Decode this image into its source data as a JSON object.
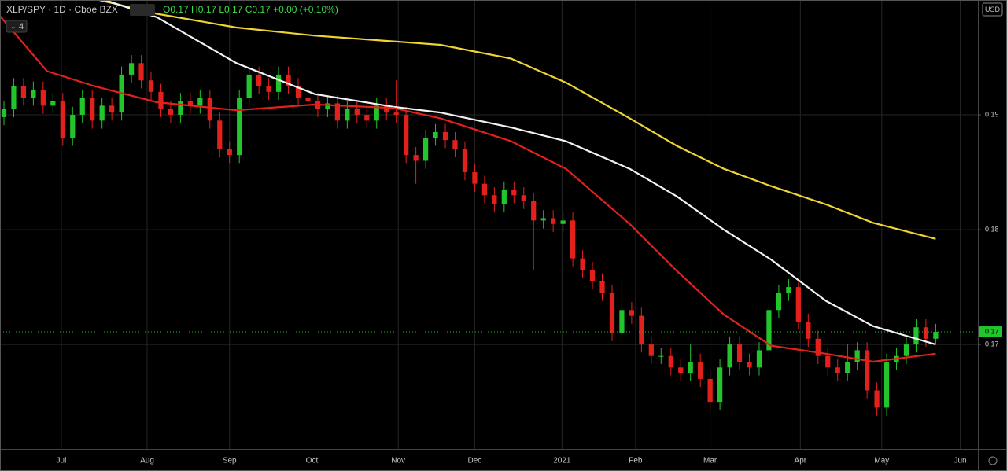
{
  "chart_data": {
    "type": "candlestick",
    "title": "XLP/SPY · 1D · Cboe BZX",
    "legend_text": "O0.17 H0.17 L0.17 C0.17 +0.00 (+0.10%)",
    "indicator_count": "4",
    "currency": "USD",
    "up_color": "#22c52b",
    "down_color": "#e3211c",
    "ohlc": [
      [
        0.1898,
        0.1912,
        0.1891,
        0.1905
      ],
      [
        0.1905,
        0.1932,
        0.1898,
        0.1925
      ],
      [
        0.1925,
        0.1932,
        0.1908,
        0.1915
      ],
      [
        0.1915,
        0.1929,
        0.1908,
        0.1922
      ],
      [
        0.1922,
        0.1929,
        0.1901,
        0.1908
      ],
      [
        0.1908,
        0.1919,
        0.1901,
        0.1912
      ],
      [
        0.1912,
        0.1919,
        0.1873,
        0.188
      ],
      [
        0.188,
        0.1907,
        0.1873,
        0.19
      ],
      [
        0.19,
        0.1922,
        0.1893,
        0.1915
      ],
      [
        0.1915,
        0.1922,
        0.1888,
        0.1895
      ],
      [
        0.1895,
        0.1915,
        0.1888,
        0.1908
      ],
      [
        0.1908,
        0.1915,
        0.1895,
        0.1902
      ],
      [
        0.1902,
        0.1942,
        0.1895,
        0.1935
      ],
      [
        0.1935,
        0.1952,
        0.1928,
        0.1945
      ],
      [
        0.1945,
        0.1952,
        0.1923,
        0.193
      ],
      [
        0.193,
        0.1937,
        0.1913,
        0.192
      ],
      [
        0.192,
        0.1927,
        0.1898,
        0.1905
      ],
      [
        0.1905,
        0.1912,
        0.1893,
        0.19
      ],
      [
        0.19,
        0.1919,
        0.1893,
        0.1912
      ],
      [
        0.1912,
        0.1919,
        0.1901,
        0.1908
      ],
      [
        0.1908,
        0.1922,
        0.1901,
        0.1915
      ],
      [
        0.1915,
        0.1922,
        0.1888,
        0.1895
      ],
      [
        0.1895,
        0.1902,
        0.1863,
        0.187
      ],
      [
        0.187,
        0.1877,
        0.1858,
        0.1865
      ],
      [
        0.1865,
        0.1922,
        0.1858,
        0.1915
      ],
      [
        0.1915,
        0.1942,
        0.1908,
        0.1935
      ],
      [
        0.1935,
        0.1942,
        0.1918,
        0.1925
      ],
      [
        0.1925,
        0.1932,
        0.1913,
        0.192
      ],
      [
        0.192,
        0.1942,
        0.1913,
        0.1935
      ],
      [
        0.1935,
        0.1942,
        0.1918,
        0.1925
      ],
      [
        0.1925,
        0.1932,
        0.1908,
        0.1915
      ],
      [
        0.1915,
        0.1922,
        0.1905,
        0.1912
      ],
      [
        0.1912,
        0.1919,
        0.1898,
        0.1905
      ],
      [
        0.1905,
        0.1917,
        0.1898,
        0.191
      ],
      [
        0.191,
        0.1917,
        0.1888,
        0.1895
      ],
      [
        0.1895,
        0.1912,
        0.1888,
        0.1905
      ],
      [
        0.1905,
        0.1912,
        0.1893,
        0.19
      ],
      [
        0.19,
        0.1907,
        0.1888,
        0.1895
      ],
      [
        0.1895,
        0.1915,
        0.1888,
        0.1908
      ],
      [
        0.1908,
        0.1915,
        0.1895,
        0.1902
      ],
      [
        0.1902,
        0.193,
        0.1893,
        0.19
      ],
      [
        0.19,
        0.1907,
        0.1858,
        0.1865
      ],
      [
        0.1865,
        0.1872,
        0.184,
        0.186
      ],
      [
        0.186,
        0.1887,
        0.1853,
        0.188
      ],
      [
        0.188,
        0.1892,
        0.1873,
        0.1885
      ],
      [
        0.1885,
        0.1892,
        0.1871,
        0.1878
      ],
      [
        0.1878,
        0.1885,
        0.1863,
        0.187
      ],
      [
        0.187,
        0.1877,
        0.1843,
        0.185
      ],
      [
        0.185,
        0.1857,
        0.1833,
        0.184
      ],
      [
        0.184,
        0.1847,
        0.1823,
        0.183
      ],
      [
        0.183,
        0.1837,
        0.1815,
        0.1822
      ],
      [
        0.1822,
        0.1842,
        0.1815,
        0.1835
      ],
      [
        0.1835,
        0.1842,
        0.1823,
        0.183
      ],
      [
        0.183,
        0.1837,
        0.1818,
        0.1825
      ],
      [
        0.1825,
        0.1832,
        0.1765,
        0.1808
      ],
      [
        0.1808,
        0.1817,
        0.1801,
        0.181
      ],
      [
        0.181,
        0.1817,
        0.1798,
        0.1805
      ],
      [
        0.1805,
        0.1815,
        0.1798,
        0.1808
      ],
      [
        0.1808,
        0.1815,
        0.1768,
        0.1775
      ],
      [
        0.1775,
        0.1782,
        0.1758,
        0.1765
      ],
      [
        0.1765,
        0.1772,
        0.1748,
        0.1755
      ],
      [
        0.1755,
        0.1762,
        0.1738,
        0.1745
      ],
      [
        0.1745,
        0.1752,
        0.1703,
        0.171
      ],
      [
        0.171,
        0.1757,
        0.1703,
        0.173
      ],
      [
        0.173,
        0.1737,
        0.1718,
        0.1725
      ],
      [
        0.1725,
        0.1732,
        0.1693,
        0.17
      ],
      [
        0.17,
        0.1707,
        0.1683,
        0.169
      ],
      [
        0.169,
        0.1697,
        0.1683,
        0.169
      ],
      [
        0.169,
        0.1697,
        0.1673,
        0.168
      ],
      [
        0.168,
        0.1687,
        0.1668,
        0.1675
      ],
      [
        0.1675,
        0.17,
        0.1668,
        0.1685
      ],
      [
        0.1685,
        0.1692,
        0.1663,
        0.167
      ],
      [
        0.167,
        0.1677,
        0.1643,
        0.165
      ],
      [
        0.165,
        0.1687,
        0.1643,
        0.168
      ],
      [
        0.168,
        0.1707,
        0.1673,
        0.17
      ],
      [
        0.17,
        0.1707,
        0.1678,
        0.1685
      ],
      [
        0.1685,
        0.1692,
        0.1673,
        0.168
      ],
      [
        0.168,
        0.1702,
        0.1673,
        0.1695
      ],
      [
        0.1695,
        0.1737,
        0.1688,
        0.173
      ],
      [
        0.173,
        0.1752,
        0.1723,
        0.1745
      ],
      [
        0.1745,
        0.1757,
        0.1738,
        0.175
      ],
      [
        0.175,
        0.1757,
        0.1713,
        0.172
      ],
      [
        0.172,
        0.1727,
        0.1698,
        0.1705
      ],
      [
        0.1705,
        0.1712,
        0.1683,
        0.169
      ],
      [
        0.169,
        0.1697,
        0.1673,
        0.168
      ],
      [
        0.168,
        0.1687,
        0.1668,
        0.1675
      ],
      [
        0.1675,
        0.17,
        0.1668,
        0.1685
      ],
      [
        0.1685,
        0.1702,
        0.1678,
        0.1695
      ],
      [
        0.1695,
        0.1702,
        0.1653,
        0.166
      ],
      [
        0.166,
        0.1667,
        0.1638,
        0.1645
      ],
      [
        0.1645,
        0.1692,
        0.1638,
        0.1685
      ],
      [
        0.1685,
        0.1697,
        0.1678,
        0.169
      ],
      [
        0.169,
        0.1707,
        0.1683,
        0.17
      ],
      [
        0.17,
        0.1722,
        0.1693,
        0.1715
      ],
      [
        0.1715,
        0.1722,
        0.1698,
        0.1705
      ],
      [
        0.1705,
        0.1718,
        0.17,
        0.1711
      ]
    ],
    "x": [
      -0.4,
      4.4,
      9.2,
      15.6,
      23.7,
      31.7,
      39.7,
      44.5,
      51.7,
      57.3,
      63.8,
      68.6,
      73.4,
      78.2,
      83.8,
      88.6,
      95
    ],
    "series": [
      {
        "color": "#f0d433",
        "values": [
          null,
          null,
          0.2001,
          0.1988,
          0.1976,
          0.1969,
          0.1964,
          0.1961,
          0.1949,
          0.1928,
          0.1897,
          0.1873,
          0.1853,
          0.1838,
          0.1822,
          0.1806,
          0.1792
        ]
      },
      {
        "color": "#f2f2f2",
        "values": [
          null,
          null,
          0.2003,
          0.1985,
          0.1945,
          0.1918,
          0.1907,
          0.1902,
          0.1889,
          0.1877,
          0.1853,
          0.1829,
          0.18,
          0.1774,
          0.1738,
          0.1716,
          0.17
        ]
      },
      {
        "color": "#e3211c",
        "values": [
          0.1986,
          0.1938,
          0.1925,
          0.1911,
          0.1904,
          0.1909,
          0.1906,
          0.1897,
          0.1877,
          0.1853,
          0.1805,
          0.1764,
          0.1726,
          0.1699,
          0.1692,
          0.1685,
          0.1692
        ]
      }
    ],
    "last_price": {
      "value": 0.1711,
      "label": "0.17"
    },
    "xlim": [
      -0.4,
      99.3
    ],
    "ylim": [
      0.1609,
      0.2
    ],
    "yticks": [
      0.19,
      0.18,
      0.17
    ],
    "xticks": [
      {
        "value": 5.85,
        "label": "Jul"
      },
      {
        "value": 14.6,
        "label": "Aug"
      },
      {
        "value": 23.0,
        "label": "Sep"
      },
      {
        "value": 31.4,
        "label": "Oct"
      },
      {
        "value": 40.2,
        "label": "Nov"
      },
      {
        "value": 48.0,
        "label": "Dec"
      },
      {
        "value": 56.9,
        "label": "2021"
      },
      {
        "value": 64.4,
        "label": "Feb"
      },
      {
        "value": 72.0,
        "label": "Mar"
      },
      {
        "value": 81.2,
        "label": "Apr"
      },
      {
        "value": 89.5,
        "label": "May"
      },
      {
        "value": 97.5,
        "label": "Jun"
      }
    ],
    "grid": true
  }
}
